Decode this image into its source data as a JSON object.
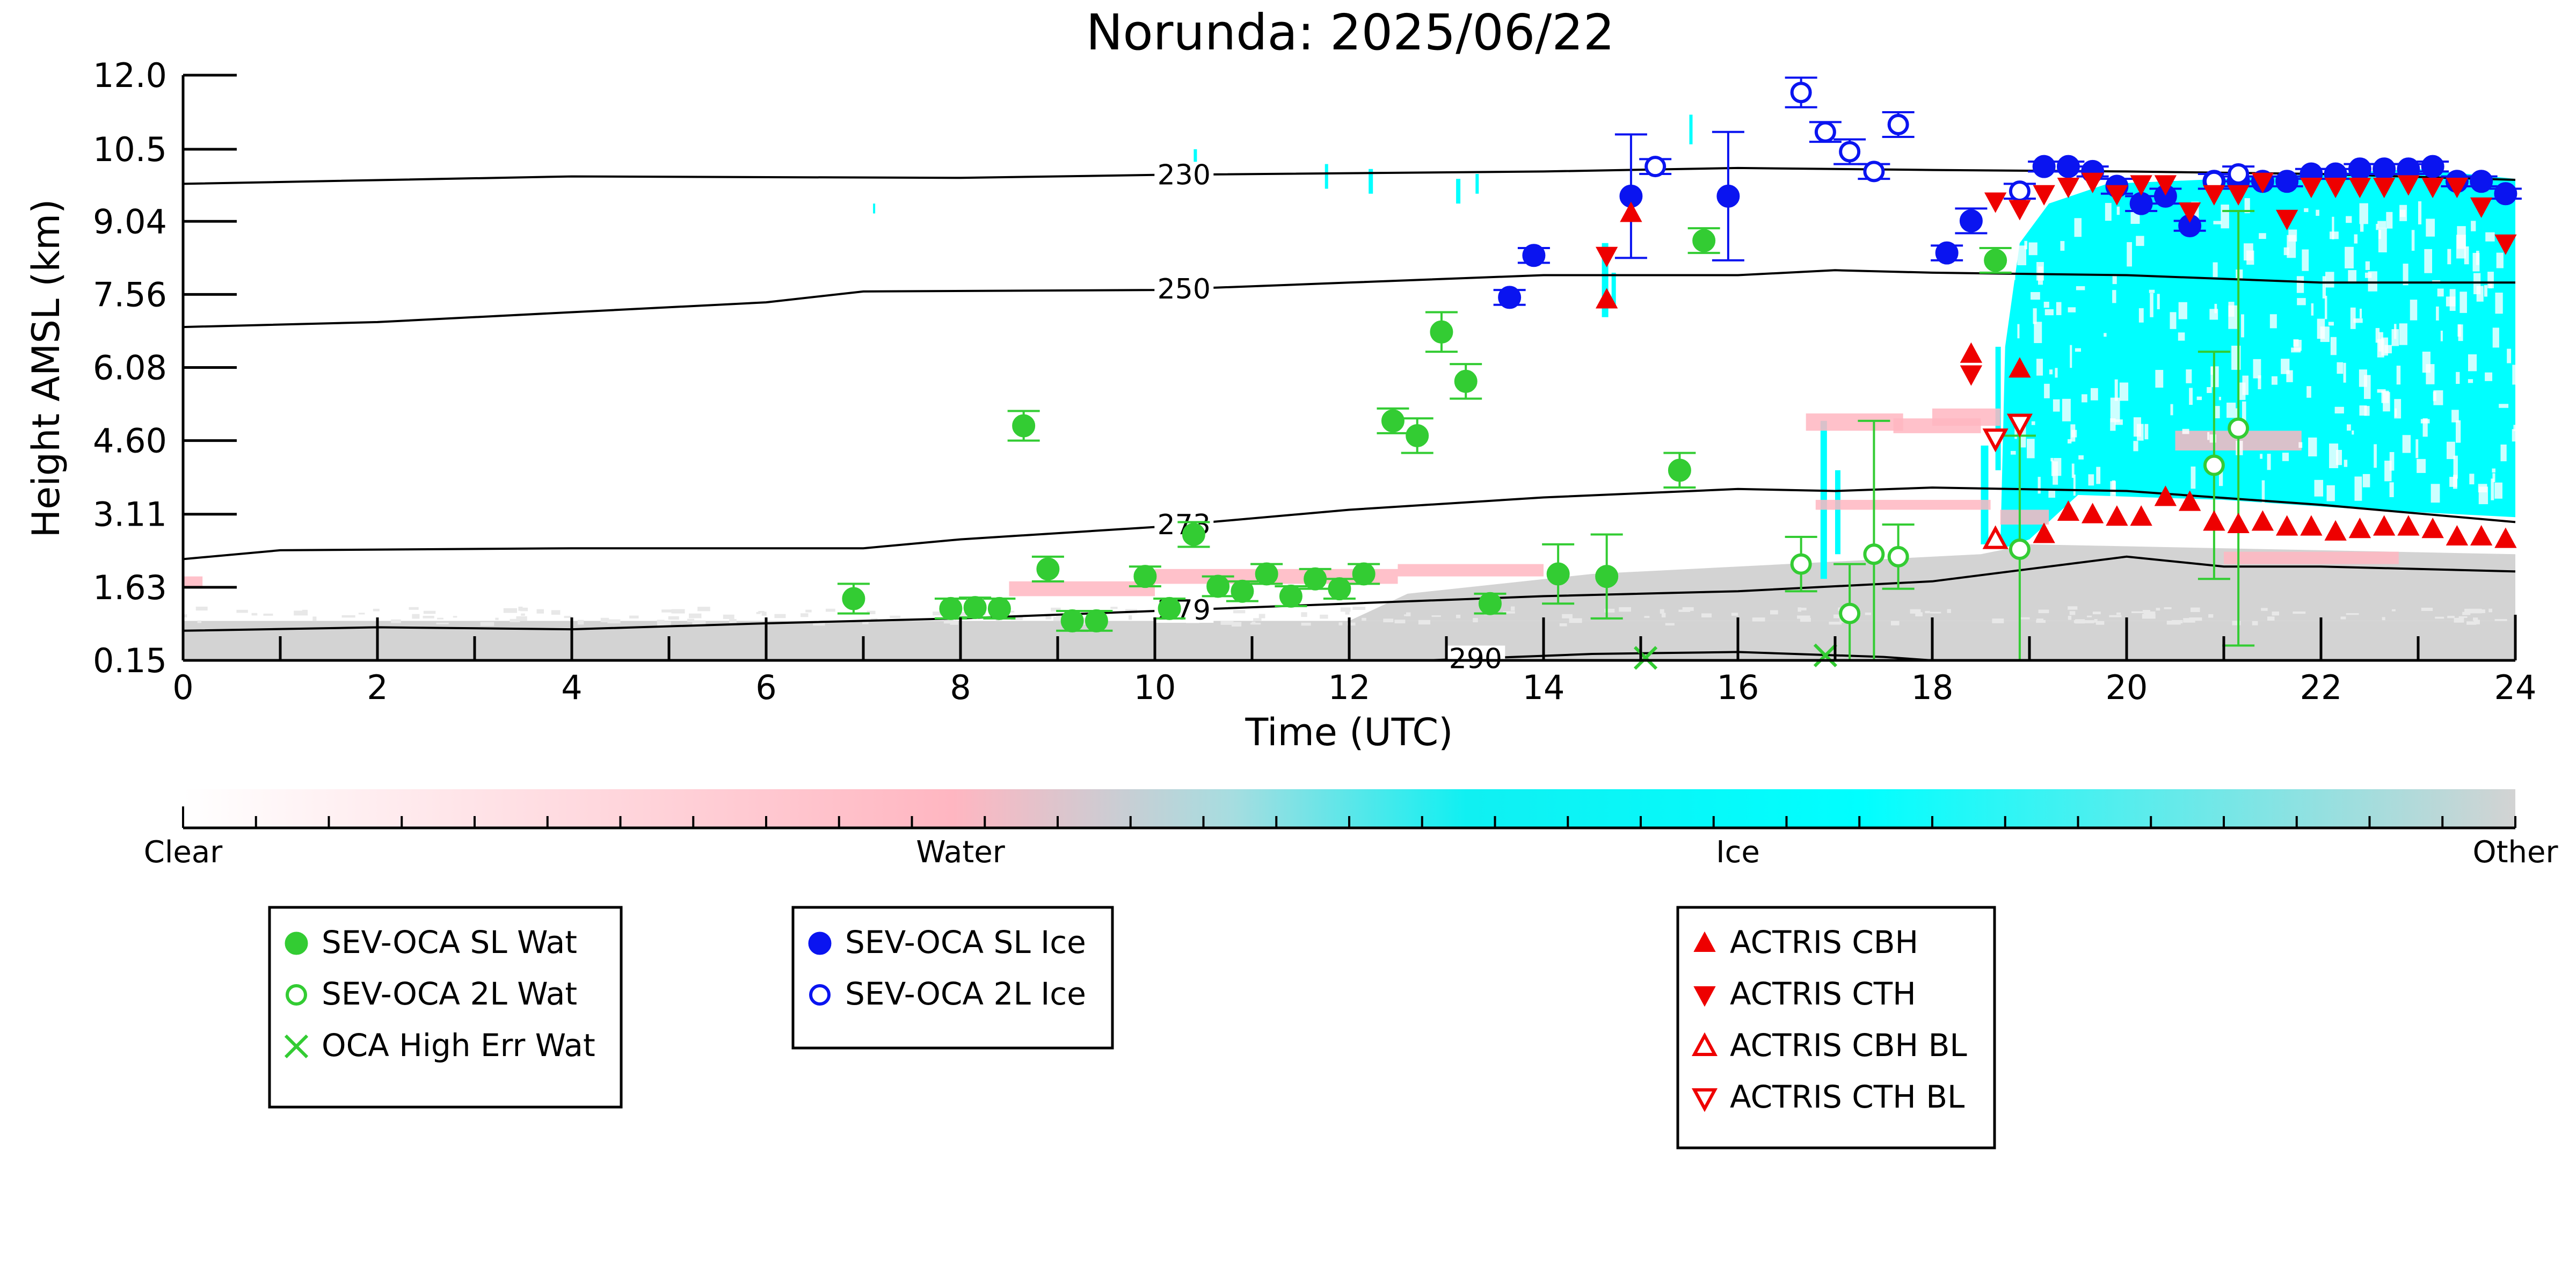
{
  "chart_data": {
    "type": "scatter",
    "title": "Norunda: 2025/06/22",
    "xlabel": "Time (UTC)",
    "ylabel": "Height AMSL (km)",
    "xlim": [
      0,
      24
    ],
    "ylim": [
      0.15,
      12.0
    ],
    "x_ticks": [
      "0",
      "2",
      "4",
      "6",
      "8",
      "10",
      "12",
      "14",
      "16",
      "18",
      "20",
      "22",
      "24"
    ],
    "x_tick_values": [
      0,
      2,
      4,
      6,
      8,
      10,
      12,
      14,
      16,
      18,
      20,
      22,
      24
    ],
    "y_ticks": [
      "0.15",
      "1.63",
      "3.11",
      "4.60",
      "6.08",
      "7.56",
      "9.04",
      "10.5",
      "12.0"
    ],
    "y_tick_values": [
      0.15,
      1.63,
      3.11,
      4.6,
      6.08,
      7.56,
      9.04,
      10.5,
      12.0
    ],
    "grid": false,
    "colorbar": {
      "labels": [
        "Clear",
        "Water",
        "Ice",
        "Other"
      ],
      "colors": [
        "#ffffff",
        "#ffb6c1",
        "#00ffff",
        "#d3d3d3"
      ]
    },
    "contours": [
      {
        "label": "230",
        "label_x": 10.3,
        "points": [
          [
            0,
            9.8
          ],
          [
            4,
            9.95
          ],
          [
            8,
            9.92
          ],
          [
            10,
            9.98
          ],
          [
            14,
            10.05
          ],
          [
            16,
            10.12
          ],
          [
            18,
            10.08
          ],
          [
            20,
            10.05
          ],
          [
            22,
            10.0
          ],
          [
            24,
            9.88
          ]
        ]
      },
      {
        "label": "250",
        "label_x": 10.3,
        "points": [
          [
            0,
            6.9
          ],
          [
            2,
            7.0
          ],
          [
            4,
            7.2
          ],
          [
            6,
            7.4
          ],
          [
            7,
            7.62
          ],
          [
            10,
            7.65
          ],
          [
            12,
            7.8
          ],
          [
            14,
            7.95
          ],
          [
            16,
            7.95
          ],
          [
            17,
            8.05
          ],
          [
            18,
            8.0
          ],
          [
            20,
            7.95
          ],
          [
            22,
            7.8
          ],
          [
            24,
            7.8
          ]
        ]
      },
      {
        "label": "273",
        "label_x": 10.3,
        "points": [
          [
            0,
            2.2
          ],
          [
            1,
            2.38
          ],
          [
            4,
            2.42
          ],
          [
            7,
            2.42
          ],
          [
            8,
            2.6
          ],
          [
            10,
            2.85
          ],
          [
            12,
            3.2
          ],
          [
            14,
            3.45
          ],
          [
            16,
            3.62
          ],
          [
            17,
            3.58
          ],
          [
            18,
            3.65
          ],
          [
            20,
            3.58
          ],
          [
            22,
            3.3
          ],
          [
            24,
            2.95
          ]
        ]
      },
      {
        "label": "279",
        "label_x": 10.3,
        "points": [
          [
            0,
            0.75
          ],
          [
            2,
            0.82
          ],
          [
            4,
            0.78
          ],
          [
            6,
            0.9
          ],
          [
            8,
            1.0
          ],
          [
            10,
            1.15
          ],
          [
            12,
            1.3
          ],
          [
            14,
            1.45
          ],
          [
            16,
            1.55
          ],
          [
            18,
            1.75
          ],
          [
            19,
            2.0
          ],
          [
            20,
            2.25
          ],
          [
            21,
            2.05
          ],
          [
            22,
            2.05
          ],
          [
            24,
            1.95
          ]
        ]
      },
      {
        "label": "290",
        "label_x": 13.3,
        "points": [
          [
            12.8,
            0.15
          ],
          [
            14.5,
            0.28
          ],
          [
            16.0,
            0.32
          ],
          [
            17.5,
            0.22
          ],
          [
            18.0,
            0.15
          ]
        ]
      }
    ],
    "series": [
      {
        "name": "SEV-OCA SL Wat",
        "marker": "filled-circle",
        "color": "#33cc33",
        "x": [
          6.9,
          7.9,
          8.15,
          8.4,
          8.65,
          8.9,
          9.15,
          9.4,
          9.9,
          10.15,
          10.4,
          10.65,
          10.9,
          11.15,
          11.4,
          11.65,
          11.9,
          12.15,
          12.45,
          12.7,
          12.95,
          13.2,
          13.45,
          14.15,
          14.65,
          15.4,
          15.65,
          18.65
        ],
        "y": [
          1.4,
          1.2,
          1.22,
          1.2,
          4.9,
          2.0,
          0.95,
          0.95,
          1.85,
          1.2,
          2.7,
          1.65,
          1.55,
          1.9,
          1.45,
          1.8,
          1.6,
          1.9,
          5.0,
          4.7,
          6.8,
          5.8,
          1.3,
          1.9,
          1.85,
          4.0,
          8.65,
          8.25
        ],
        "err": [
          0.3,
          0.2,
          0.2,
          0.2,
          0.3,
          0.25,
          0.2,
          0.2,
          0.2,
          0.2,
          0.25,
          0.2,
          0.2,
          0.2,
          0.2,
          0.2,
          0.2,
          0.2,
          0.25,
          0.35,
          0.4,
          0.35,
          0.2,
          0.6,
          0.85,
          0.35,
          0.25,
          0.25
        ]
      },
      {
        "name": "SEV-OCA 2L Wat",
        "marker": "open-circle",
        "color": "#33cc33",
        "x": [
          16.65,
          17.15,
          17.4,
          17.65,
          18.9,
          20.9,
          21.15
        ],
        "y": [
          2.1,
          1.1,
          2.3,
          2.25,
          2.4,
          4.1,
          4.85
        ],
        "err": [
          0.55,
          1.0,
          2.7,
          0.65,
          2.3,
          2.3,
          4.4
        ]
      },
      {
        "name": "OCA High Err Wat",
        "marker": "x",
        "color": "#33cc33",
        "x": [
          15.05,
          16.9
        ],
        "y": [
          0.2,
          0.25
        ],
        "err": [
          0,
          0
        ]
      },
      {
        "name": "SEV-OCA SL Ice",
        "marker": "filled-circle",
        "color": "#0a14f0",
        "x": [
          13.65,
          13.9,
          14.9,
          15.9,
          18.15,
          18.4,
          19.15,
          19.4,
          19.65,
          19.9,
          20.15,
          20.4,
          20.65,
          20.9,
          21.15,
          21.4,
          21.65,
          21.9,
          22.15,
          22.4,
          22.65,
          22.9,
          23.15,
          23.4,
          23.65,
          23.9
        ],
        "y": [
          7.5,
          8.35,
          9.55,
          9.55,
          8.4,
          9.05,
          10.15,
          10.15,
          10.05,
          9.75,
          9.4,
          9.55,
          8.95,
          9.85,
          9.85,
          9.85,
          9.85,
          10.0,
          10.0,
          10.1,
          10.1,
          10.1,
          10.15,
          9.85,
          9.85,
          9.6
        ],
        "err": [
          0.15,
          0.15,
          1.25,
          1.3,
          0.15,
          0.25,
          0.1,
          0.1,
          0.1,
          0.15,
          0.15,
          0.15,
          0.1,
          0.15,
          0.1,
          0.1,
          0.1,
          0.1,
          0.1,
          0.1,
          0.1,
          0.1,
          0.1,
          0.1,
          0.1,
          0.1
        ]
      },
      {
        "name": "SEV-OCA 2L Ice",
        "marker": "open-circle",
        "color": "#0a14f0",
        "x": [
          15.15,
          16.65,
          16.9,
          17.15,
          17.4,
          17.65,
          18.9,
          20.9,
          21.15
        ],
        "y": [
          10.15,
          11.65,
          10.85,
          10.45,
          10.05,
          11.0,
          9.65,
          9.85,
          10.0
        ],
        "err": [
          0.15,
          0.3,
          0.2,
          0.25,
          0.15,
          0.25,
          0.15,
          0.15,
          0.15
        ]
      },
      {
        "name": "ACTRIS CBH",
        "marker": "triangle-up",
        "color": "#ee0000",
        "x": [
          14.65,
          14.9,
          18.4,
          18.9,
          19.15,
          19.4,
          19.65,
          19.9,
          20.15,
          20.4,
          20.65,
          20.9,
          21.15,
          21.4,
          21.65,
          21.9,
          22.15,
          22.4,
          22.65,
          22.9,
          23.15,
          23.4,
          23.65,
          23.9
        ],
        "y": [
          7.45,
          9.2,
          6.35,
          6.05,
          2.7,
          3.15,
          3.1,
          3.05,
          3.05,
          3.45,
          3.35,
          2.95,
          2.9,
          2.95,
          2.85,
          2.85,
          2.75,
          2.8,
          2.85,
          2.85,
          2.8,
          2.65,
          2.65,
          2.6
        ]
      },
      {
        "name": "ACTRIS CTH",
        "marker": "triangle-down",
        "color": "#ee0000",
        "x": [
          14.65,
          18.4,
          18.65,
          18.9,
          19.15,
          19.4,
          19.65,
          19.9,
          20.15,
          20.4,
          20.65,
          20.9,
          21.15,
          21.4,
          21.65,
          21.9,
          22.15,
          22.4,
          22.65,
          22.9,
          23.15,
          23.4,
          23.65,
          23.9
        ],
        "y": [
          8.35,
          5.95,
          9.45,
          9.3,
          9.6,
          9.75,
          9.85,
          9.6,
          9.8,
          9.8,
          9.25,
          9.6,
          9.6,
          9.85,
          9.1,
          9.75,
          9.75,
          9.75,
          9.75,
          9.8,
          9.75,
          9.75,
          9.35,
          8.6
        ]
      },
      {
        "name": "ACTRIS CBH BL",
        "marker": "open-triangle-up",
        "color": "#ee0000",
        "x": [
          18.65
        ],
        "y": [
          2.6
        ]
      },
      {
        "name": "ACTRIS CTH BL",
        "marker": "open-triangle-down",
        "color": "#ee0000",
        "x": [
          18.65,
          18.9
        ],
        "y": [
          4.65,
          4.95
        ]
      }
    ],
    "legends": [
      [
        "SEV-OCA SL Wat",
        "SEV-OCA 2L Wat",
        "OCA High Err Wat"
      ],
      [
        "SEV-OCA SL Ice",
        "SEV-OCA 2L Ice"
      ],
      [
        "ACTRIS CBH",
        "ACTRIS CTH",
        "ACTRIS CBH BL",
        "ACTRIS CTH BL"
      ]
    ]
  }
}
